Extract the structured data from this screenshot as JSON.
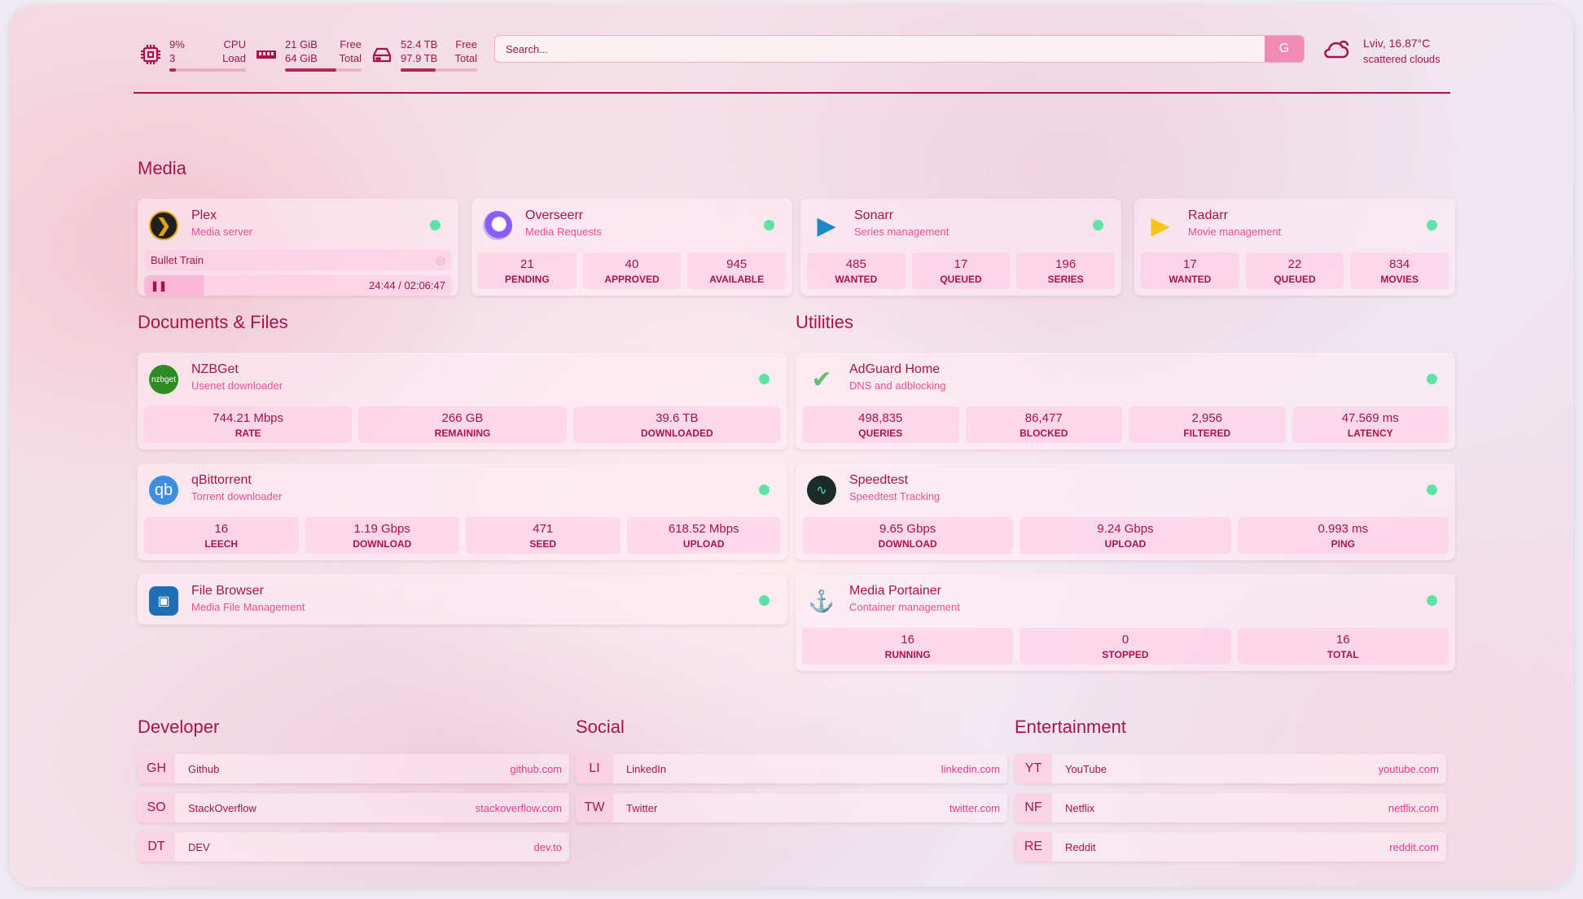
{
  "header": {
    "resources": [
      {
        "icon": "cpu-icon",
        "top": "9%",
        "bottom": "3",
        "label_top": "CPU",
        "label_bottom": "Load",
        "fill": 0.09
      },
      {
        "icon": "memory-icon",
        "top": "21 GiB",
        "bottom": "64 GiB",
        "label_top": "Free",
        "label_bottom": "Total",
        "fill": 0.67
      },
      {
        "icon": "disk-icon",
        "top": "52.4 TB",
        "bottom": "97.9 TB",
        "label_top": "Free",
        "label_bottom": "Total",
        "fill": 0.46
      }
    ],
    "search": {
      "placeholder": "Search...",
      "button": "G"
    },
    "weather": {
      "icon": "cloud-icon",
      "location": "Lviv, 16.87°C",
      "condition": "scattered clouds"
    }
  },
  "colors": {
    "accent": "#a8124a",
    "description": "#ea4f93",
    "status": "#5de3a8",
    "search_button": "#f08cb4"
  },
  "sections": {
    "media": "Media",
    "docs": "Documents & Files",
    "utilities": "Utilities",
    "developer": "Developer",
    "social": "Social",
    "entertainment": "Entertainment"
  },
  "services": [
    {
      "name": "Plex",
      "desc": "Media server",
      "icon": "plex-icon",
      "now_playing": {
        "title": "Bullet Train",
        "time": "24:44 / 02:06:47",
        "progress": 0.195
      }
    },
    {
      "name": "Overseerr",
      "desc": "Media Requests",
      "icon": "overseerr-icon",
      "stats": [
        [
          "21",
          "PENDING"
        ],
        [
          "40",
          "APPROVED"
        ],
        [
          "945",
          "AVAILABLE"
        ]
      ]
    },
    {
      "name": "Sonarr",
      "desc": "Series management",
      "icon": "sonarr-icon",
      "stats": [
        [
          "485",
          "WANTED"
        ],
        [
          "17",
          "QUEUED"
        ],
        [
          "196",
          "SERIES"
        ]
      ]
    },
    {
      "name": "Radarr",
      "desc": "Movie management",
      "icon": "radarr-icon",
      "stats": [
        [
          "17",
          "WANTED"
        ],
        [
          "22",
          "QUEUED"
        ],
        [
          "834",
          "MOVIES"
        ]
      ]
    },
    {
      "name": "NZBGet",
      "desc": "Usenet downloader",
      "icon": "nzbget-icon",
      "icon_text": "nzbget",
      "stats": [
        [
          "744.21 Mbps",
          "RATE"
        ],
        [
          "266 GB",
          "REMAINING"
        ],
        [
          "39.6 TB",
          "DOWNLOADED"
        ]
      ]
    },
    {
      "name": "qBittorrent",
      "desc": "Torrent downloader",
      "icon": "qbittorrent-icon",
      "icon_text": "qb",
      "stats": [
        [
          "16",
          "LEECH"
        ],
        [
          "1.19 Gbps",
          "DOWNLOAD"
        ],
        [
          "471",
          "SEED"
        ],
        [
          "618.52 Mbps",
          "UPLOAD"
        ]
      ]
    },
    {
      "name": "File Browser",
      "desc": "Media File Management",
      "icon": "filebrowser-icon"
    },
    {
      "name": "AdGuard Home",
      "desc": "DNS and adblocking",
      "icon": "adguard-icon",
      "stats": [
        [
          "498,835",
          "QUERIES"
        ],
        [
          "86,477",
          "BLOCKED"
        ],
        [
          "2,956",
          "FILTERED"
        ],
        [
          "47.569 ms",
          "LATENCY"
        ]
      ]
    },
    {
      "name": "Speedtest",
      "desc": "Speedtest Tracking",
      "icon": "speedtest-icon",
      "stats": [
        [
          "9.65 Gbps",
          "DOWNLOAD"
        ],
        [
          "9.24 Gbps",
          "UPLOAD"
        ],
        [
          "0.993 ms",
          "PING"
        ]
      ]
    },
    {
      "name": "Media Portainer",
      "desc": "Container management",
      "icon": "portainer-icon",
      "stats": [
        [
          "16",
          "RUNNING"
        ],
        [
          "0",
          "STOPPED"
        ],
        [
          "16",
          "TOTAL"
        ]
      ]
    }
  ],
  "bookmarks": [
    [
      {
        "abbr": "GH",
        "name": "Github",
        "url": "github.com"
      },
      {
        "abbr": "SO",
        "name": "StackOverflow",
        "url": "stackoverflow.com"
      },
      {
        "abbr": "DT",
        "name": "DEV",
        "url": "dev.to"
      }
    ],
    [
      {
        "abbr": "LI",
        "name": "LinkedIn",
        "url": "linkedin.com"
      },
      {
        "abbr": "TW",
        "name": "Twitter",
        "url": "twitter.com"
      }
    ],
    [
      {
        "abbr": "YT",
        "name": "YouTube",
        "url": "youtube.com"
      },
      {
        "abbr": "NF",
        "name": "Netflix",
        "url": "netflix.com"
      },
      {
        "abbr": "RE",
        "name": "Reddit",
        "url": "reddit.com"
      }
    ]
  ]
}
